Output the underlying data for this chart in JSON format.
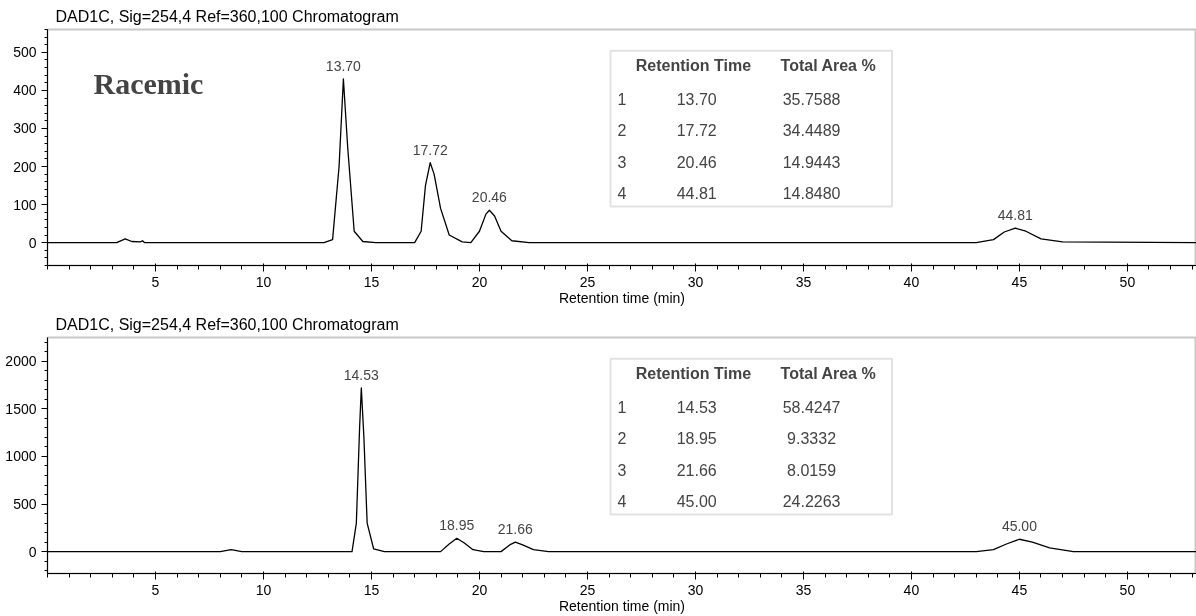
{
  "chart_data": [
    {
      "type": "line",
      "title": "DAD1C, Sig=254,4  Ref=360,100 Chromatogram",
      "subtitle": "Racemic",
      "xlabel": "Retention time (min)",
      "xlim": [
        0,
        53.2
      ],
      "xticks": [
        5,
        10,
        15,
        20,
        25,
        30,
        35,
        40,
        45,
        50
      ],
      "ylim": [
        -60,
        560
      ],
      "yticks": [
        0,
        100,
        200,
        300,
        400,
        500
      ],
      "marker": "none",
      "line_style": "solid",
      "series": [
        {
          "color": "#000000",
          "x": [
            0,
            3.2,
            3.6,
            3.9,
            4.3,
            4.4,
            4.5,
            12.8,
            13.2,
            13.5,
            13.7,
            13.9,
            14.2,
            14.6,
            15.2,
            17.0,
            17.3,
            17.5,
            17.72,
            17.9,
            18.2,
            18.6,
            19.2,
            19.6,
            20.0,
            20.3,
            20.46,
            20.7,
            21.0,
            21.5,
            22.3,
            43.0,
            43.8,
            44.3,
            44.81,
            45.3,
            46.0,
            47.0,
            53.2
          ],
          "values": [
            0,
            0,
            10,
            3,
            2,
            5,
            0,
            0,
            8,
            200,
            430,
            250,
            30,
            3,
            0,
            0,
            30,
            150,
            210,
            180,
            90,
            20,
            2,
            0,
            30,
            75,
            85,
            70,
            30,
            5,
            0,
            0,
            8,
            28,
            38,
            30,
            10,
            2,
            0
          ]
        }
      ],
      "annotations": [
        {
          "text": "13.70",
          "x": 13.7,
          "y": 430
        },
        {
          "text": "17.72",
          "x": 17.72,
          "y": 210
        },
        {
          "text": "20.46",
          "x": 20.46,
          "y": 85
        },
        {
          "text": "44.81",
          "x": 44.81,
          "y": 38
        },
        "Retention Time",
        "Total Area %",
        "1",
        "13.70",
        "35.7588",
        "2",
        "17.72",
        "34.4489",
        "3",
        "20.46",
        "14.9443",
        "4",
        "44.81",
        "14.8480"
      ]
    },
    {
      "type": "line",
      "title": "DAD1C, Sig=254,4  Ref=360,100 Chromatogram",
      "xlabel": "Retention time (min)",
      "xlim": [
        0,
        53.2
      ],
      "xticks": [
        5,
        10,
        15,
        20,
        25,
        30,
        35,
        40,
        45,
        50
      ],
      "ylim": [
        -230,
        2250
      ],
      "yticks": [
        0,
        500,
        1000,
        1500,
        2000
      ],
      "marker": "none",
      "line_style": "solid",
      "series": [
        {
          "color": "#000000",
          "x": [
            0,
            8,
            8.5,
            9,
            14.1,
            14.3,
            14.45,
            14.53,
            14.65,
            14.8,
            15.1,
            15.6,
            18.2,
            18.6,
            18.95,
            19.3,
            19.7,
            20.2,
            21.0,
            21.4,
            21.66,
            22.0,
            22.5,
            23.2,
            43.0,
            43.8,
            44.4,
            45.0,
            45.6,
            46.4,
            47.5,
            53.2
          ],
          "values": [
            0,
            0,
            20,
            0,
            0,
            300,
            1300,
            1720,
            1200,
            300,
            30,
            0,
            0,
            80,
            140,
            90,
            20,
            0,
            0,
            70,
            100,
            70,
            20,
            0,
            0,
            20,
            80,
            130,
            100,
            40,
            0,
            0
          ]
        }
      ],
      "annotations": [
        {
          "text": "14.53",
          "x": 14.53,
          "y": 1720
        },
        {
          "text": "18.95",
          "x": 18.95,
          "y": 140
        },
        {
          "text": "21.66",
          "x": 21.66,
          "y": 105
        },
        {
          "text": "45.00",
          "x": 45.0,
          "y": 130
        },
        "Retention Time",
        "Total Area %",
        "1",
        "14.53",
        "58.4247",
        "2",
        "18.95",
        "9.3332",
        "3",
        "21.66",
        "8.0159",
        "4",
        "45.00",
        "24.2263"
      ]
    }
  ]
}
